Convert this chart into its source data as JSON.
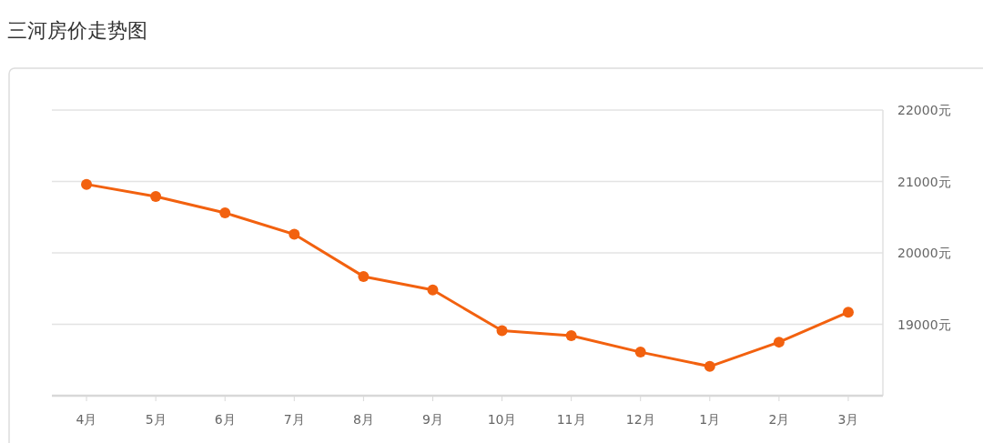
{
  "chart_data": {
    "type": "line",
    "title": "三河房价走势图",
    "categories": [
      "4月",
      "5月",
      "6月",
      "7月",
      "8月",
      "9月",
      "10月",
      "11月",
      "12月",
      "1月",
      "2月",
      "3月"
    ],
    "series": [
      {
        "color": "#f2610f",
        "values": [
          20960,
          20790,
          20560,
          20260,
          19670,
          19480,
          18910,
          18840,
          18610,
          18410,
          18750,
          19170
        ]
      }
    ],
    "ylim": [
      18000,
      22000
    ],
    "yticks": [
      {
        "value": 19000,
        "label": "19000元"
      },
      {
        "value": 20000,
        "label": "20000元"
      },
      {
        "value": 21000,
        "label": "21000元"
      },
      {
        "value": 22000,
        "label": "22000元"
      }
    ],
    "grid": "y",
    "marker": "circle",
    "line_style": "solid"
  }
}
